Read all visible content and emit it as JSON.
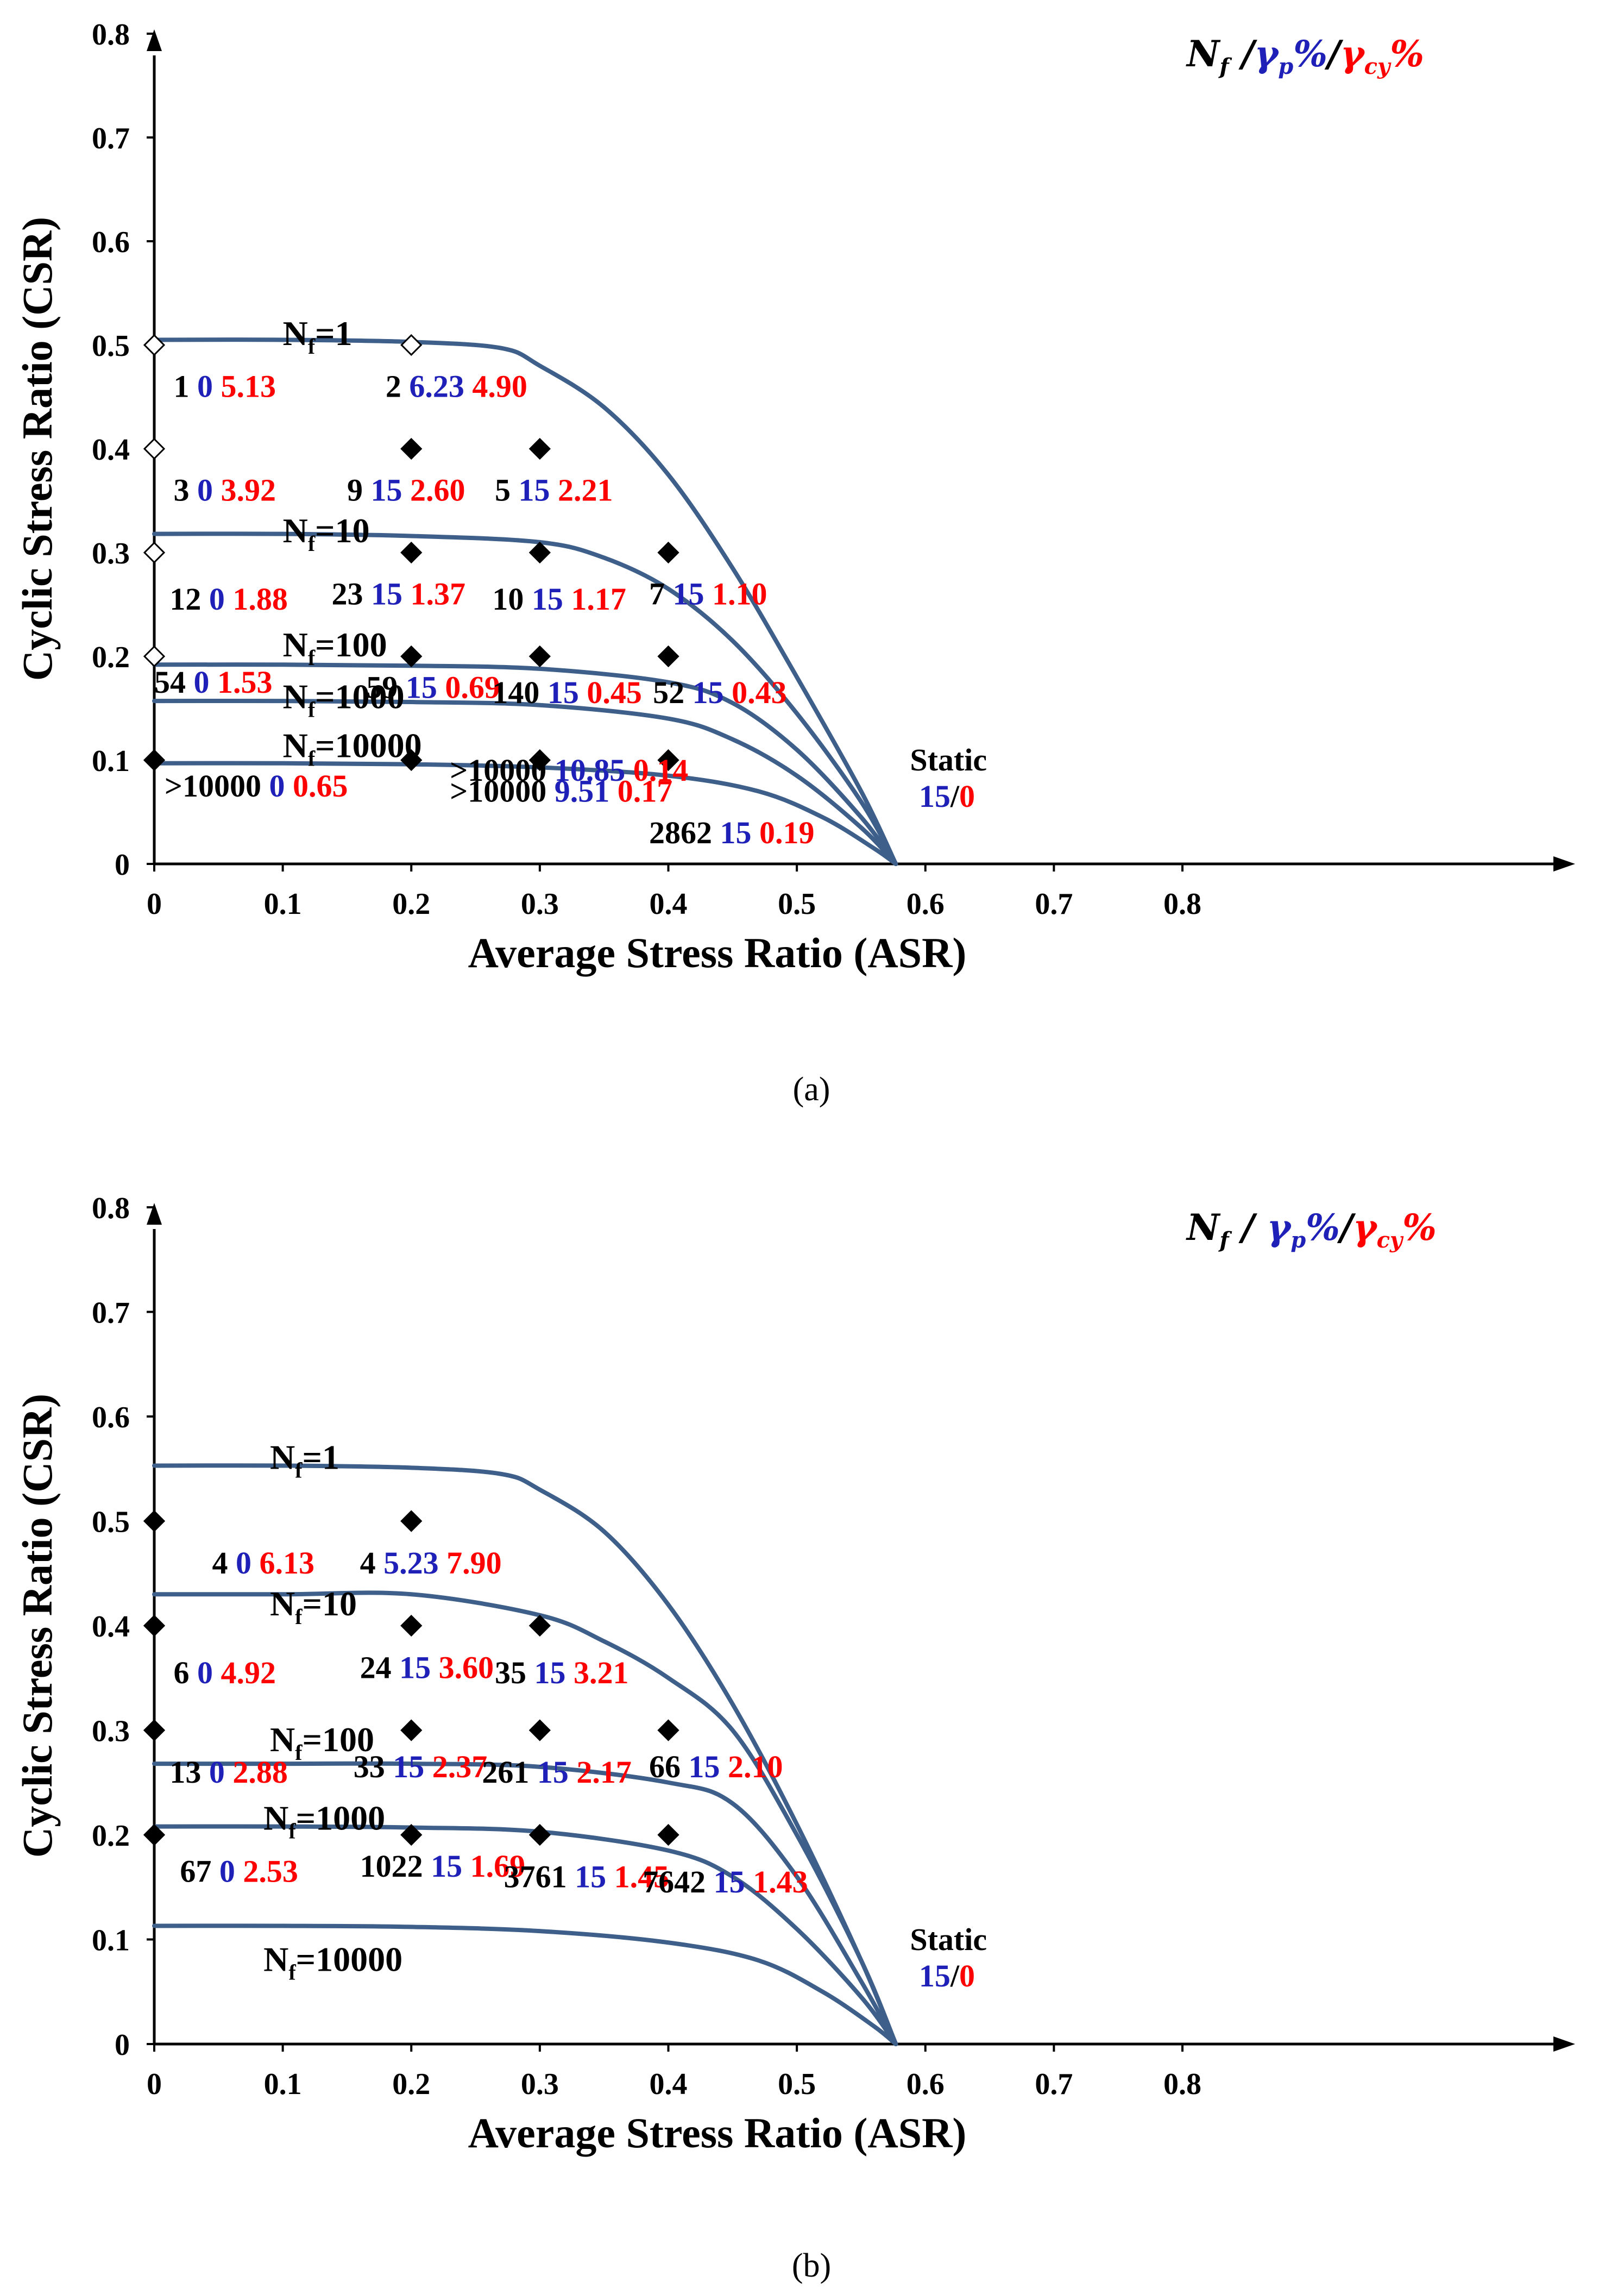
{
  "colors": {
    "curve": "#3e5f8a",
    "black": "#000000",
    "blue": "#1e20b8",
    "red": "#ff0000"
  },
  "chart_data": [
    {
      "type": "line",
      "panel": "a",
      "caption": "(a)",
      "xlabel": "Average Stress Ratio (ASR)",
      "ylabel": "Cyclic Stress Ratio (CSR)",
      "xlim": [
        0,
        0.8
      ],
      "ylim": [
        0,
        0.8
      ],
      "xticks": [
        "0",
        "0.1",
        "0.2",
        "0.3",
        "0.4",
        "0.5",
        "0.6",
        "0.7",
        "0.8"
      ],
      "yticks": [
        "0",
        "0.1",
        "0.2",
        "0.3",
        "0.4",
        "0.5",
        "0.6",
        "0.7",
        "0.8"
      ],
      "legend": {
        "nf": "N",
        "nf_sub": "f",
        "sep1": " /",
        "gp": "γ",
        "gp_sub": "p",
        "gp_pct": "%",
        "sep2": "/",
        "gc": "γ",
        "gc_sub": "cy",
        "gc_pct": "%"
      },
      "curves": [
        {
          "label": "N",
          "sub": "f",
          "eq": "=1",
          "x": [
            0,
            0.1,
            0.2,
            0.27,
            0.3,
            0.35,
            0.4,
            0.45,
            0.5,
            0.55,
            0.577
          ],
          "y": [
            0.505,
            0.505,
            0.503,
            0.497,
            0.48,
            0.44,
            0.375,
            0.285,
            0.18,
            0.07,
            0
          ]
        },
        {
          "label": "N",
          "sub": "f",
          "eq": "=10",
          "x": [
            0,
            0.1,
            0.2,
            0.3,
            0.35,
            0.4,
            0.45,
            0.5,
            0.55,
            0.577
          ],
          "y": [
            0.318,
            0.318,
            0.316,
            0.31,
            0.295,
            0.265,
            0.215,
            0.145,
            0.06,
            0
          ]
        },
        {
          "label": "N",
          "sub": "f",
          "eq": "=100",
          "x": [
            0,
            0.1,
            0.2,
            0.3,
            0.4,
            0.45,
            0.5,
            0.55,
            0.577
          ],
          "y": [
            0.192,
            0.192,
            0.191,
            0.188,
            0.175,
            0.155,
            0.11,
            0.045,
            0
          ]
        },
        {
          "label": "N",
          "sub": "f",
          "eq": "=1000",
          "x": [
            0,
            0.1,
            0.2,
            0.3,
            0.4,
            0.45,
            0.5,
            0.55,
            0.577
          ],
          "y": [
            0.157,
            0.157,
            0.156,
            0.153,
            0.14,
            0.12,
            0.085,
            0.035,
            0
          ]
        },
        {
          "label": "N",
          "sub": "f",
          "eq": "=10000",
          "x": [
            0,
            0.1,
            0.2,
            0.3,
            0.4,
            0.47,
            0.52,
            0.56,
            0.577
          ],
          "y": [
            0.097,
            0.097,
            0.096,
            0.093,
            0.085,
            0.07,
            0.045,
            0.015,
            0
          ]
        }
      ],
      "curve_label_pos": [
        [
          0.1,
          0.5
        ],
        [
          0.1,
          0.31
        ],
        [
          0.1,
          0.2
        ],
        [
          0.1,
          0.15
        ],
        [
          0.1,
          0.103
        ]
      ],
      "points": [
        {
          "x": 0,
          "y": 0.5,
          "filled": false
        },
        {
          "x": 0,
          "y": 0.4,
          "filled": false
        },
        {
          "x": 0,
          "y": 0.3,
          "filled": false
        },
        {
          "x": 0,
          "y": 0.2,
          "filled": false
        },
        {
          "x": 0,
          "y": 0.1,
          "filled": true
        },
        {
          "x": 0.2,
          "y": 0.5,
          "filled": false
        },
        {
          "x": 0.2,
          "y": 0.4,
          "filled": true
        },
        {
          "x": 0.2,
          "y": 0.3,
          "filled": true
        },
        {
          "x": 0.2,
          "y": 0.2,
          "filled": true
        },
        {
          "x": 0.2,
          "y": 0.1,
          "filled": true
        },
        {
          "x": 0.3,
          "y": 0.4,
          "filled": true
        },
        {
          "x": 0.3,
          "y": 0.3,
          "filled": true
        },
        {
          "x": 0.3,
          "y": 0.2,
          "filled": true
        },
        {
          "x": 0.3,
          "y": 0.1,
          "filled": true
        },
        {
          "x": 0.4,
          "y": 0.3,
          "filled": true
        },
        {
          "x": 0.4,
          "y": 0.2,
          "filled": true
        },
        {
          "x": 0.4,
          "y": 0.1,
          "filled": true
        }
      ],
      "annotations": [
        {
          "x": 0.015,
          "y": 0.45,
          "nf": "1",
          "gp": "0",
          "gc": "5.13"
        },
        {
          "x": 0.18,
          "y": 0.45,
          "nf": "2",
          "gp": "6.23",
          "gc": "4.90"
        },
        {
          "x": 0.015,
          "y": 0.35,
          "nf": "3",
          "gp": "0",
          "gc": "3.92"
        },
        {
          "x": 0.15,
          "y": 0.35,
          "nf": "9",
          "gp": "15",
          "gc": "2.60"
        },
        {
          "x": 0.265,
          "y": 0.35,
          "nf": "5",
          "gp": "15",
          "gc": "2.21"
        },
        {
          "x": 0.012,
          "y": 0.245,
          "nf": "12",
          "gp": "0",
          "gc": "1.88"
        },
        {
          "x": 0.138,
          "y": 0.25,
          "nf": "23",
          "gp": "15",
          "gc": "1.37"
        },
        {
          "x": 0.263,
          "y": 0.245,
          "nf": "10",
          "gp": "15",
          "gc": "1.17"
        },
        {
          "x": 0.385,
          "y": 0.25,
          "nf": "7",
          "gp": "15",
          "gc": "1.10"
        },
        {
          "x": 0.0,
          "y": 0.165,
          "nf": "54",
          "gp": "0",
          "gc": "1.53"
        },
        {
          "x": 0.165,
          "y": 0.16,
          "nf": "59",
          "gp": "15",
          "gc": "0.69"
        },
        {
          "x": 0.263,
          "y": 0.155,
          "nf": "140",
          "gp": "15",
          "gc": "0.45"
        },
        {
          "x": 0.388,
          "y": 0.155,
          "nf": "52",
          "gp": "15",
          "gc": "0.43"
        },
        {
          "x": 0.008,
          "y": 0.065,
          "nf": ">10000",
          "gp": "0",
          "gc": "0.65"
        },
        {
          "x": 0.23,
          "y": 0.06,
          "nf": ">10000",
          "gp": "9.51",
          "gc": "0.17"
        },
        {
          "x": 0.23,
          "y": 0.08,
          "nf": ">10000",
          "gp": "10.85",
          "gc": "0.14"
        },
        {
          "x": 0.385,
          "y": 0.02,
          "nf": "2862",
          "gp": "15",
          "gc": "0.19"
        }
      ],
      "static_label": "Static",
      "static_gp": "15",
      "static_sep": "/",
      "static_gc": "0"
    },
    {
      "type": "line",
      "panel": "b",
      "caption": "(b)",
      "xlabel": "Average Stress Ratio (ASR)",
      "ylabel": "Cyclic Stress Ratio (CSR)",
      "xlim": [
        0,
        0.8
      ],
      "ylim": [
        0,
        0.8
      ],
      "xticks": [
        "0",
        "0.1",
        "0.2",
        "0.3",
        "0.4",
        "0.5",
        "0.6",
        "0.7",
        "0.8"
      ],
      "yticks": [
        "0",
        "0.1",
        "0.2",
        "0.3",
        "0.4",
        "0.5",
        "0.6",
        "0.7",
        "0.8"
      ],
      "legend": {
        "nf": "N",
        "nf_sub": "f",
        "sep1": " / ",
        "gp": "γ",
        "gp_sub": "p",
        "gp_pct": "%",
        "sep2": "/",
        "gc": "γ",
        "gc_sub": "cy",
        "gc_pct": "%"
      },
      "curves": [
        {
          "label": "N",
          "sub": "f",
          "eq": "=1",
          "x": [
            0,
            0.1,
            0.2,
            0.27,
            0.3,
            0.35,
            0.4,
            0.45,
            0.5,
            0.55,
            0.577
          ],
          "y": [
            0.553,
            0.553,
            0.551,
            0.545,
            0.53,
            0.49,
            0.42,
            0.325,
            0.21,
            0.08,
            0
          ]
        },
        {
          "label": "N",
          "sub": "f",
          "eq": "=10",
          "x": [
            0,
            0.1,
            0.2,
            0.3,
            0.35,
            0.4,
            0.45,
            0.5,
            0.55,
            0.577
          ],
          "y": [
            0.43,
            0.43,
            0.43,
            0.41,
            0.385,
            0.35,
            0.3,
            0.2,
            0.08,
            0
          ]
        },
        {
          "label": "N",
          "sub": "f",
          "eq": "=100",
          "x": [
            0,
            0.1,
            0.2,
            0.3,
            0.4,
            0.45,
            0.5,
            0.55,
            0.577
          ],
          "y": [
            0.268,
            0.268,
            0.268,
            0.265,
            0.25,
            0.23,
            0.16,
            0.06,
            0
          ]
        },
        {
          "label": "N",
          "sub": "f",
          "eq": "=1000",
          "x": [
            0,
            0.1,
            0.2,
            0.3,
            0.4,
            0.45,
            0.5,
            0.55,
            0.577
          ],
          "y": [
            0.208,
            0.208,
            0.207,
            0.203,
            0.185,
            0.16,
            0.11,
            0.045,
            0
          ]
        },
        {
          "label": "N",
          "sub": "f",
          "eq": "=10000",
          "x": [
            0,
            0.1,
            0.2,
            0.3,
            0.4,
            0.47,
            0.52,
            0.56,
            0.577
          ],
          "y": [
            0.113,
            0.113,
            0.112,
            0.108,
            0.097,
            0.08,
            0.05,
            0.017,
            0
          ]
        }
      ],
      "curve_label_pos": [
        [
          0.09,
          0.55
        ],
        [
          0.09,
          0.41
        ],
        [
          0.09,
          0.28
        ],
        [
          0.085,
          0.205
        ],
        [
          0.085,
          0.07
        ]
      ],
      "points": [
        {
          "x": 0,
          "y": 0.5,
          "filled": true
        },
        {
          "x": 0,
          "y": 0.4,
          "filled": true
        },
        {
          "x": 0,
          "y": 0.3,
          "filled": true
        },
        {
          "x": 0,
          "y": 0.2,
          "filled": true
        },
        {
          "x": 0.2,
          "y": 0.5,
          "filled": true
        },
        {
          "x": 0.2,
          "y": 0.4,
          "filled": true
        },
        {
          "x": 0.2,
          "y": 0.3,
          "filled": true
        },
        {
          "x": 0.2,
          "y": 0.2,
          "filled": true
        },
        {
          "x": 0.3,
          "y": 0.4,
          "filled": true
        },
        {
          "x": 0.3,
          "y": 0.3,
          "filled": true
        },
        {
          "x": 0.3,
          "y": 0.2,
          "filled": true
        },
        {
          "x": 0.4,
          "y": 0.3,
          "filled": true
        },
        {
          "x": 0.4,
          "y": 0.2,
          "filled": true
        }
      ],
      "annotations": [
        {
          "x": 0.045,
          "y": 0.45,
          "nf": "4",
          "gp": "0",
          "gc": "6.13"
        },
        {
          "x": 0.16,
          "y": 0.45,
          "nf": "4",
          "gp": "5.23",
          "gc": "7.90"
        },
        {
          "x": 0.015,
          "y": 0.345,
          "nf": "6",
          "gp": "0",
          "gc": "4.92"
        },
        {
          "x": 0.16,
          "y": 0.35,
          "nf": "24",
          "gp": "15",
          "gc": "3.60"
        },
        {
          "x": 0.265,
          "y": 0.345,
          "nf": "35",
          "gp": "15",
          "gc": "3.21"
        },
        {
          "x": 0.012,
          "y": 0.25,
          "nf": "13",
          "gp": "0",
          "gc": "2.88"
        },
        {
          "x": 0.155,
          "y": 0.255,
          "nf": "33",
          "gp": "15",
          "gc": "2.37"
        },
        {
          "x": 0.255,
          "y": 0.25,
          "nf": "261",
          "gp": "15",
          "gc": "2.17"
        },
        {
          "x": 0.385,
          "y": 0.255,
          "nf": "66",
          "gp": "15",
          "gc": "2.10"
        },
        {
          "x": 0.02,
          "y": 0.155,
          "nf": "67",
          "gp": "0",
          "gc": "2.53"
        },
        {
          "x": 0.16,
          "y": 0.16,
          "nf": "1022",
          "gp": "15",
          "gc": "1.69"
        },
        {
          "x": 0.272,
          "y": 0.15,
          "nf": "3761",
          "gp": "15",
          "gc": "1.45"
        },
        {
          "x": 0.38,
          "y": 0.145,
          "nf": "7642",
          "gp": "15",
          "gc": "1.43"
        }
      ],
      "static_label": "Static",
      "static_gp": "15",
      "static_sep": "/",
      "static_gc": "0"
    }
  ]
}
